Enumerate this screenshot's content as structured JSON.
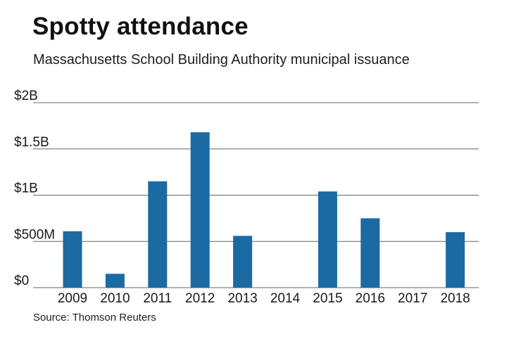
{
  "title": "Spotty attendance",
  "subtitle": "Massachusetts School Building Authority municipal issuance",
  "source": "Source: Thomson Reuters",
  "colors": {
    "bar": "#1c6aa3",
    "grid": "#666666",
    "text": "#1a1a1a"
  },
  "chart_data": {
    "type": "bar",
    "title": "Spotty attendance",
    "xlabel": "",
    "ylabel": "",
    "units": "USD",
    "categories": [
      "2009",
      "2010",
      "2011",
      "2012",
      "2013",
      "2014",
      "2015",
      "2016",
      "2017",
      "2018"
    ],
    "values": [
      610000000,
      150000000,
      1150000000,
      1680000000,
      560000000,
      0,
      1040000000,
      750000000,
      0,
      600000000
    ],
    "ylim": [
      0,
      2000000000
    ],
    "yticks": [
      0,
      500000000,
      1000000000,
      1500000000,
      2000000000
    ],
    "ytick_labels": [
      "$0",
      "$500M",
      "$1B",
      "$1.5B",
      "$2B"
    ],
    "grid": true,
    "legend": "none"
  }
}
